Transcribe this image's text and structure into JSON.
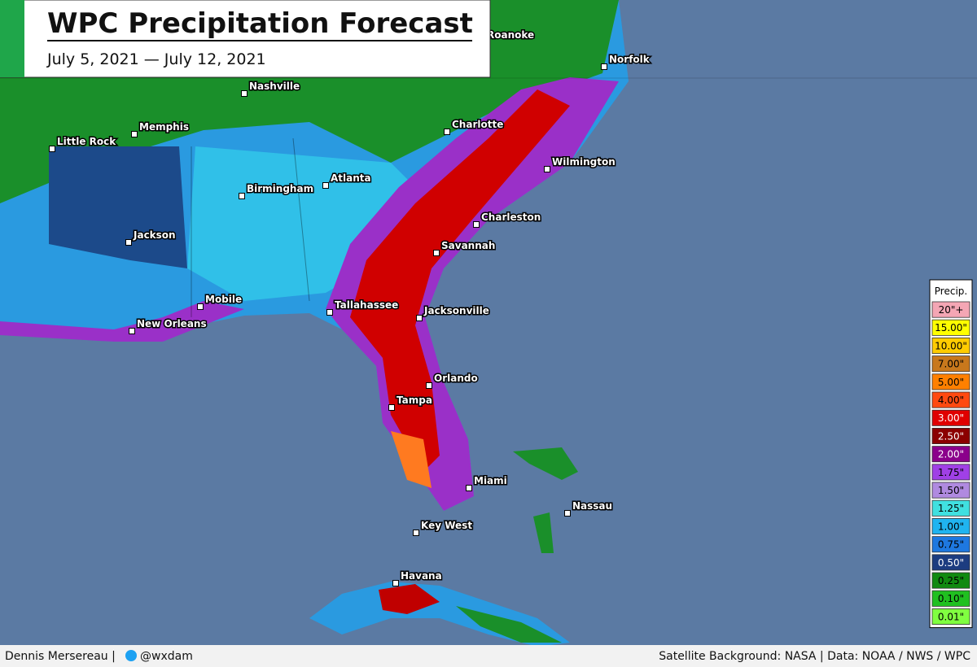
{
  "header": {
    "title": "WPC Precipitation Forecast",
    "date_range": "July 5, 2021 — July 12, 2021"
  },
  "cities": [
    "Roanoke",
    "Norfolk",
    "Nashville",
    "Memphis",
    "Little Rock",
    "Charlotte",
    "Wilmington",
    "Atlanta",
    "Birmingham",
    "Charleston",
    "Savannah",
    "Jackson",
    "Mobile",
    "Tallahassee",
    "Jacksonville",
    "New Orleans",
    "Orlando",
    "Tampa",
    "Miami",
    "Nassau",
    "Key West",
    "Havana"
  ],
  "legend": {
    "title": "Precip.",
    "items": [
      {
        "label": "20\"+",
        "color": "#f4a6b4"
      },
      {
        "label": "15.00\"",
        "color": "#ffff00"
      },
      {
        "label": "10.00\"",
        "color": "#ffcc00"
      },
      {
        "label": "7.00\"",
        "color": "#c8781c"
      },
      {
        "label": "5.00\"",
        "color": "#ff8000"
      },
      {
        "label": "4.00\"",
        "color": "#ff4a10"
      },
      {
        "label": "3.00\"",
        "color": "#e00000"
      },
      {
        "label": "2.50\"",
        "color": "#8b0000"
      },
      {
        "label": "2.00\"",
        "color": "#8b008b"
      },
      {
        "label": "1.75\"",
        "color": "#a040e6"
      },
      {
        "label": "1.50\"",
        "color": "#b08ae0"
      },
      {
        "label": "1.25\"",
        "color": "#40e0e0"
      },
      {
        "label": "1.00\"",
        "color": "#20b4f0"
      },
      {
        "label": "0.75\"",
        "color": "#1e78e0"
      },
      {
        "label": "0.50\"",
        "color": "#1c3c80"
      },
      {
        "label": "0.25\"",
        "color": "#108a10"
      },
      {
        "label": "0.10\"",
        "color": "#20c020"
      },
      {
        "label": "0.01\"",
        "color": "#80ff40"
      }
    ]
  },
  "footer": {
    "author": "Dennis Mersereau |",
    "handle": "@wxdam",
    "credits": "Satellite Background: NASA | Data: NOAA / NWS / WPC"
  }
}
